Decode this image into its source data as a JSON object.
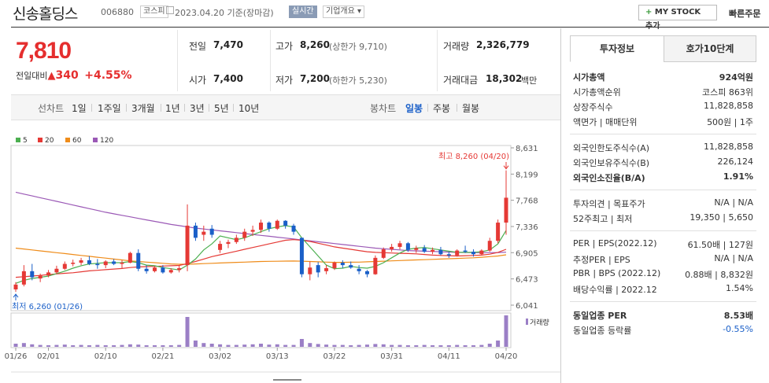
{
  "header": {
    "name": "신송홀딩스",
    "code": "006880",
    "market_badge": "코스피",
    "date_text": "2023.04.20 기준(장마감)",
    "live_badge": "실시간",
    "overview_badge": "기업개요",
    "my_stock_label": "MY STOCK 추가",
    "quick_order_label": "빠른주문"
  },
  "price": {
    "current": "7,810",
    "change_label": "전일대비",
    "change_abs": "340",
    "change_pct": "+4.55%"
  },
  "quote_grid": {
    "prev_label": "전일",
    "prev_val": "7,470",
    "high_label": "고가",
    "high_val": "8,260",
    "high_sub": "(상한가 9,710)",
    "vol_label": "거래량",
    "vol_val": "2,326,779",
    "open_label": "시가",
    "open_val": "7,400",
    "low_label": "저가",
    "low_val": "7,200",
    "low_sub": "(하한가 5,230)",
    "amt_label": "거래대금",
    "amt_val": "18,302",
    "amt_unit": "백만"
  },
  "chart_tabs": {
    "line_label": "선차트",
    "line_items": [
      "1일",
      "1주일",
      "3개월",
      "1년",
      "3년",
      "5년",
      "10년"
    ],
    "candle_label": "봉차트",
    "candle_items": [
      "일봉",
      "주봉",
      "월봉"
    ],
    "candle_selected": "일봉"
  },
  "right_panel": {
    "tab_info": "투자정보",
    "tab_ask": "호가10단계",
    "rows1": [
      {
        "label": "시가총액",
        "val": "924억원",
        "bold": true
      },
      {
        "label": "시가총액순위",
        "val": "코스피 863위"
      },
      {
        "label": "상장주식수",
        "val": "11,828,858"
      },
      {
        "label": "액면가 | 매매단위",
        "val": "500원 | 1주"
      }
    ],
    "rows2": [
      {
        "label": "외국인한도주식수(A)",
        "val": "11,828,858"
      },
      {
        "label": "외국인보유주식수(B)",
        "val": "226,124"
      },
      {
        "label": "외국인소진율(B/A)",
        "val": "1.91%",
        "bold": true
      }
    ],
    "rows3": [
      {
        "label": "투자의견 | 목표주가",
        "val": "N/A | N/A"
      },
      {
        "label": "52주최고 | 최저",
        "val": "19,350 | 5,650"
      }
    ],
    "rows4": [
      {
        "label": "PER | EPS(2022.12)",
        "val": "61.50배 | 127원"
      },
      {
        "label": "추정PER | EPS",
        "val": "N/A | N/A"
      },
      {
        "label": "PBR | BPS (2022.12)",
        "val": "0.88배 | 8,832원"
      },
      {
        "label": "배당수익률 | 2022.12",
        "val": "1.54%"
      }
    ],
    "rows5": [
      {
        "label": "동일업종 PER",
        "val": "8.53배",
        "bold": true
      },
      {
        "label": "동일업종 등락률",
        "val": "-0.55%",
        "blue": true
      }
    ]
  },
  "chart_data": {
    "type": "candlestick",
    "legend": [
      {
        "name": "5",
        "color": "#4caf50"
      },
      {
        "name": "20",
        "color": "#e53935"
      },
      {
        "name": "60",
        "color": "#ef8c1a"
      },
      {
        "name": "120",
        "color": "#9b59b6"
      }
    ],
    "y_ticks": [
      "8,631",
      "8,199",
      "7,768",
      "7,336",
      "6,905",
      "6,473",
      "6,041"
    ],
    "y_tick_values": [
      8631,
      8199,
      7768,
      7336,
      6905,
      6473,
      6041
    ],
    "x_ticks": [
      "01/26",
      "02/01",
      "02/10",
      "02/21",
      "03/02",
      "03/13",
      "03/22",
      "03/31",
      "04/11",
      "04/20"
    ],
    "x_tick_index": [
      0,
      4,
      11,
      18,
      25,
      32,
      39,
      46,
      53,
      60
    ],
    "max_annotation": "최고 8,260 (04/20)",
    "min_annotation": "최저 6,260 (01/26)",
    "volume_label": "거래량",
    "candles": [
      [
        6300,
        6420,
        6260,
        6380
      ],
      [
        6380,
        6700,
        6350,
        6600
      ],
      [
        6600,
        6720,
        6450,
        6500
      ],
      [
        6480,
        6560,
        6420,
        6530
      ],
      [
        6530,
        6620,
        6500,
        6580
      ],
      [
        6580,
        6690,
        6550,
        6640
      ],
      [
        6640,
        6760,
        6620,
        6720
      ],
      [
        6720,
        6790,
        6680,
        6740
      ],
      [
        6740,
        6820,
        6700,
        6780
      ],
      [
        6780,
        6850,
        6700,
        6720
      ],
      [
        6720,
        6800,
        6640,
        6700
      ],
      [
        6700,
        6780,
        6650,
        6760
      ],
      [
        6760,
        6800,
        6700,
        6720
      ],
      [
        6720,
        6780,
        6650,
        6740
      ],
      [
        6740,
        6920,
        6730,
        6900
      ],
      [
        6900,
        6960,
        6600,
        6640
      ],
      [
        6640,
        6700,
        6560,
        6600
      ],
      [
        6600,
        6680,
        6580,
        6660
      ],
      [
        6660,
        6700,
        6560,
        6580
      ],
      [
        6580,
        6650,
        6560,
        6620
      ],
      [
        6620,
        6700,
        6580,
        6650
      ],
      [
        6700,
        7700,
        6600,
        7350
      ],
      [
        7350,
        7400,
        7100,
        7150
      ],
      [
        7200,
        7350,
        7100,
        7250
      ],
      [
        7300,
        7360,
        7150,
        7200
      ],
      [
        6950,
        7100,
        6900,
        7050
      ],
      [
        7050,
        7120,
        6980,
        7080
      ],
      [
        7080,
        7200,
        7050,
        7150
      ],
      [
        7150,
        7300,
        7100,
        7250
      ],
      [
        7250,
        7350,
        7180,
        7280
      ],
      [
        7280,
        7450,
        7230,
        7400
      ],
      [
        7400,
        7420,
        7250,
        7300
      ],
      [
        7300,
        7450,
        7280,
        7430
      ],
      [
        7430,
        7440,
        7300,
        7350
      ],
      [
        7350,
        7380,
        7200,
        7250
      ],
      [
        7150,
        7150,
        6500,
        6550
      ],
      [
        6550,
        6760,
        6450,
        6660
      ],
      [
        6700,
        6750,
        6500,
        6580
      ],
      [
        6600,
        6700,
        6550,
        6650
      ],
      [
        6650,
        6760,
        6620,
        6740
      ],
      [
        6740,
        6780,
        6650,
        6700
      ],
      [
        6700,
        6760,
        6640,
        6660
      ],
      [
        6640,
        6700,
        6550,
        6600
      ],
      [
        6600,
        6620,
        6500,
        6550
      ],
      [
        6550,
        6860,
        6540,
        6820
      ],
      [
        6820,
        6990,
        6800,
        6960
      ],
      [
        6960,
        7050,
        6920,
        7000
      ],
      [
        7000,
        7100,
        6960,
        7060
      ],
      [
        7060,
        7080,
        6920,
        6950
      ],
      [
        6950,
        7020,
        6900,
        6980
      ],
      [
        6980,
        7030,
        6900,
        6920
      ],
      [
        6920,
        6990,
        6880,
        6950
      ],
      [
        6950,
        7000,
        6860,
        6880
      ],
      [
        6880,
        6920,
        6820,
        6860
      ],
      [
        6860,
        6960,
        6840,
        6940
      ],
      [
        6940,
        7020,
        6900,
        6920
      ],
      [
        6920,
        6960,
        6840,
        6880
      ],
      [
        6880,
        6960,
        6860,
        6940
      ],
      [
        6940,
        7150,
        6920,
        7100
      ],
      [
        7100,
        7450,
        7060,
        7400
      ],
      [
        7400,
        8260,
        7200,
        7810
      ]
    ],
    "volume_rel": [
      0.1,
      0.12,
      0.08,
      0.06,
      0.05,
      0.06,
      0.07,
      0.05,
      0.06,
      0.05,
      0.06,
      0.05,
      0.05,
      0.06,
      0.08,
      0.07,
      0.05,
      0.05,
      0.05,
      0.05,
      0.06,
      0.95,
      0.2,
      0.12,
      0.1,
      0.08,
      0.06,
      0.06,
      0.07,
      0.08,
      0.1,
      0.07,
      0.08,
      0.06,
      0.06,
      0.25,
      0.12,
      0.09,
      0.07,
      0.06,
      0.06,
      0.05,
      0.06,
      0.07,
      0.09,
      0.08,
      0.06,
      0.06,
      0.05,
      0.05,
      0.06,
      0.05,
      0.05,
      0.05,
      0.06,
      0.05,
      0.05,
      0.06,
      0.1,
      0.2,
      1.0
    ],
    "ma5": [
      6400,
      6450,
      6480,
      6500,
      6520,
      6560,
      6600,
      6650,
      6690,
      6720,
      6730,
      6740,
      6740,
      6740,
      6760,
      6740,
      6700,
      6690,
      6660,
      6640,
      6620,
      6700,
      6800,
      6950,
      7050,
      7180,
      7150,
      7120,
      7150,
      7200,
      7250,
      7300,
      7330,
      7350,
      7330,
      7150,
      7000,
      6850,
      6700,
      6640,
      6650,
      6680,
      6660,
      6650,
      6680,
      6740,
      6820,
      6900,
      6960,
      6980,
      6990,
      6970,
      6950,
      6930,
      6910,
      6910,
      6910,
      6920,
      6950,
      7050,
      7270
    ],
    "ma20": [
      6500,
      6510,
      6520,
      6530,
      6545,
      6555,
      6565,
      6575,
      6590,
      6605,
      6615,
      6625,
      6635,
      6645,
      6660,
      6670,
      6675,
      6680,
      6685,
      6690,
      6695,
      6725,
      6760,
      6800,
      6840,
      6870,
      6900,
      6930,
      6960,
      6990,
      7020,
      7050,
      7080,
      7110,
      7120,
      7110,
      7090,
      7060,
      7030,
      7000,
      6980,
      6960,
      6940,
      6920,
      6910,
      6905,
      6900,
      6895,
      6890,
      6885,
      6875,
      6865,
      6860,
      6855,
      6850,
      6855,
      6860,
      6865,
      6880,
      6910,
      6960
    ],
    "ma60": [
      6980,
      6965,
      6950,
      6935,
      6920,
      6905,
      6890,
      6875,
      6860,
      6845,
      6830,
      6815,
      6800,
      6785,
      6770,
      6760,
      6750,
      6740,
      6730,
      6720,
      6715,
      6715,
      6720,
      6725,
      6730,
      6735,
      6740,
      6745,
      6750,
      6755,
      6760,
      6762,
      6764,
      6766,
      6768,
      6765,
      6760,
      6755,
      6750,
      6745,
      6745,
      6748,
      6750,
      6755,
      6760,
      6765,
      6770,
      6775,
      6780,
      6785,
      6790,
      6795,
      6800,
      6805,
      6810,
      6815,
      6820,
      6830,
      6840,
      6850,
      6870
    ],
    "ma120": [
      7900,
      7870,
      7840,
      7810,
      7780,
      7750,
      7720,
      7690,
      7660,
      7630,
      7600,
      7570,
      7545,
      7520,
      7495,
      7470,
      7445,
      7420,
      7395,
      7370,
      7350,
      7330,
      7310,
      7295,
      7280,
      7265,
      7250,
      7235,
      7220,
      7205,
      7190,
      7175,
      7160,
      7145,
      7130,
      7115,
      7100,
      7085,
      7070,
      7055,
      7040,
      7025,
      7010,
      6995,
      6980,
      6970,
      6960,
      6950,
      6940,
      6935,
      6930,
      6925,
      6920,
      6915,
      6910,
      6908,
      6906,
      6905,
      6906,
      6908,
      6912
    ]
  }
}
